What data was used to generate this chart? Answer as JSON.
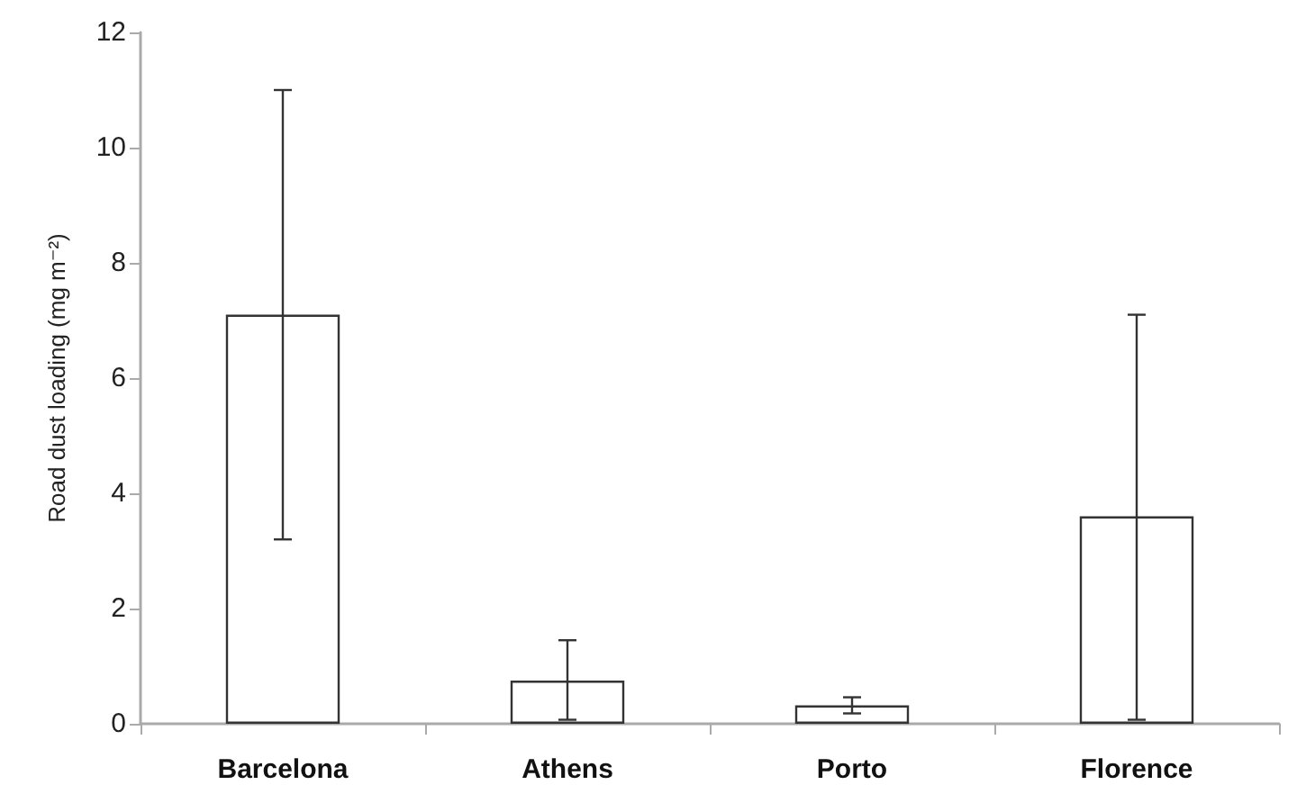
{
  "chart_data": {
    "type": "bar",
    "ylabel": "Road dust loading (mg m⁻²)",
    "categories": [
      "Barcelona",
      "Athens",
      "Porto",
      "Florence"
    ],
    "values": [
      7.1,
      0.75,
      0.32,
      3.6
    ],
    "errors": [
      [
        3.2,
        11.0
      ],
      [
        0.07,
        1.45
      ],
      [
        0.18,
        0.46
      ],
      [
        0.07,
        7.1
      ]
    ],
    "color": "#ffffff",
    "ylim": [
      0,
      12
    ],
    "yticks": [
      0,
      2,
      4,
      6,
      8,
      10,
      12
    ],
    "grid": false
  }
}
